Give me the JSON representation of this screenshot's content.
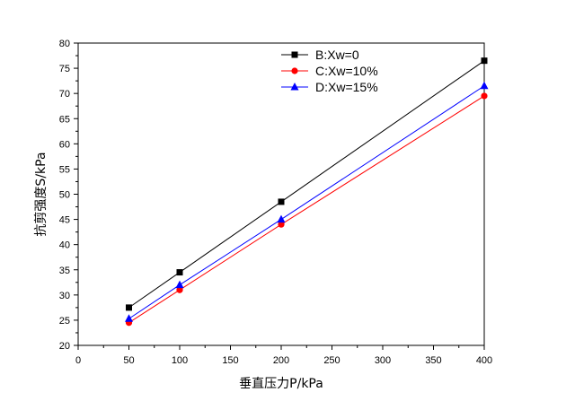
{
  "chart_data": {
    "type": "line",
    "x": [
      50,
      100,
      200,
      400
    ],
    "series": [
      {
        "name": "B:Xw=0",
        "values": [
          27.5,
          34.5,
          48.5,
          76.5
        ],
        "color": "#000000",
        "marker": "square"
      },
      {
        "name": "C:Xw=10%",
        "values": [
          24.5,
          31.0,
          44.0,
          69.5
        ],
        "color": "#ff0000",
        "marker": "circle"
      },
      {
        "name": "D:Xw=15%",
        "values": [
          25.3,
          32.0,
          45.0,
          71.5
        ],
        "color": "#0000ff",
        "marker": "triangle"
      }
    ],
    "xlabel": "垂直压力P/kPa",
    "ylabel": "抗剪强度S/kPa",
    "xlim": [
      0,
      400
    ],
    "ylim": [
      20,
      80
    ],
    "xticks": [
      0,
      50,
      100,
      150,
      200,
      250,
      300,
      350,
      400
    ],
    "yticks": [
      20,
      25,
      30,
      35,
      40,
      45,
      50,
      55,
      60,
      65,
      70,
      75,
      80
    ],
    "legend_position": "top-center",
    "grid": false
  }
}
